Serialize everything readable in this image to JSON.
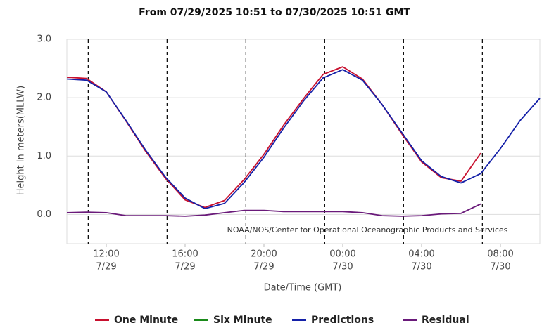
{
  "chart_data": {
    "type": "line",
    "subtitle": "From 07/29/2025 10:51 to 07/30/2025 10:51 GMT",
    "xlabel": "Date/Time (GMT)",
    "ylabel": "Height in meters(MLLW)",
    "annotation": "NOAA/NOS/Center for Operational Oceanographic Products and Services",
    "x": [
      "7/29 10:00",
      "7/29 11:00",
      "7/29 12:00",
      "7/29 13:00",
      "7/29 14:00",
      "7/29 15:00",
      "7/29 16:00",
      "7/29 17:00",
      "7/29 18:00",
      "7/29 19:00",
      "7/29 20:00",
      "7/29 21:00",
      "7/29 22:00",
      "7/29 23:00",
      "7/30 00:00",
      "7/30 01:00",
      "7/30 02:00",
      "7/30 03:00",
      "7/30 04:00",
      "7/30 05:00",
      "7/30 06:00",
      "7/30 07:00",
      "7/30 08:00",
      "7/30 09:00",
      "7/30 10:00"
    ],
    "series": [
      {
        "name": "One Minute",
        "color": "#c8102e",
        "values": [
          2.35,
          2.33,
          2.1,
          1.6,
          1.08,
          0.62,
          0.25,
          0.12,
          0.24,
          0.6,
          1.03,
          1.53,
          1.98,
          2.4,
          2.53,
          2.32,
          1.88,
          1.38,
          0.9,
          0.63,
          0.57,
          1.05,
          null,
          null,
          null
        ]
      },
      {
        "name": "Six Minute",
        "color": "#1a8a1a",
        "values": [
          null,
          null,
          null,
          null,
          null,
          null,
          null,
          null,
          null,
          null,
          null,
          null,
          null,
          null,
          null,
          null,
          null,
          null,
          null,
          null,
          null,
          null,
          null,
          null,
          null
        ]
      },
      {
        "name": "Predictions",
        "color": "#1420a8",
        "values": [
          2.32,
          2.3,
          2.1,
          1.61,
          1.1,
          0.64,
          0.28,
          0.1,
          0.19,
          0.55,
          0.98,
          1.48,
          1.94,
          2.34,
          2.48,
          2.3,
          1.88,
          1.4,
          0.92,
          0.65,
          0.54,
          0.7,
          1.13,
          1.61,
          1.99
        ]
      },
      {
        "name": "Residual",
        "color": "#6a1a7a",
        "values": [
          0.03,
          0.04,
          0.03,
          -0.02,
          -0.02,
          -0.02,
          -0.03,
          -0.01,
          0.03,
          0.07,
          0.07,
          0.05,
          0.05,
          0.05,
          0.05,
          0.03,
          -0.02,
          -0.03,
          -0.02,
          0.01,
          0.02,
          0.18,
          null,
          null,
          null
        ]
      }
    ],
    "markers": [
      "7/29 11:05",
      "7/29 15:05",
      "7/29 19:05",
      "7/29 23:05",
      "7/30 03:05",
      "7/30 07:05"
    ],
    "xlim": [
      "7/29 10:00",
      "7/30 10:00"
    ],
    "xticks": [
      {
        "value": "7/29 12:00",
        "label": [
          "12:00",
          "7/29"
        ]
      },
      {
        "value": "7/29 16:00",
        "label": [
          "16:00",
          "7/29"
        ]
      },
      {
        "value": "7/29 20:00",
        "label": [
          "20:00",
          "7/29"
        ]
      },
      {
        "value": "7/30 00:00",
        "label": [
          "00:00",
          "7/30"
        ]
      },
      {
        "value": "7/30 04:00",
        "label": [
          "04:00",
          "7/30"
        ]
      },
      {
        "value": "7/30 08:00",
        "label": [
          "08:00",
          "7/30"
        ]
      }
    ],
    "ylim": [
      -0.5,
      3.0
    ],
    "yticks": [
      {
        "value": 0,
        "label": "0.0"
      },
      {
        "value": 1,
        "label": "1.0"
      },
      {
        "value": 2,
        "label": "2.0"
      },
      {
        "value": 3,
        "label": "3.0"
      }
    ],
    "grid": true
  }
}
